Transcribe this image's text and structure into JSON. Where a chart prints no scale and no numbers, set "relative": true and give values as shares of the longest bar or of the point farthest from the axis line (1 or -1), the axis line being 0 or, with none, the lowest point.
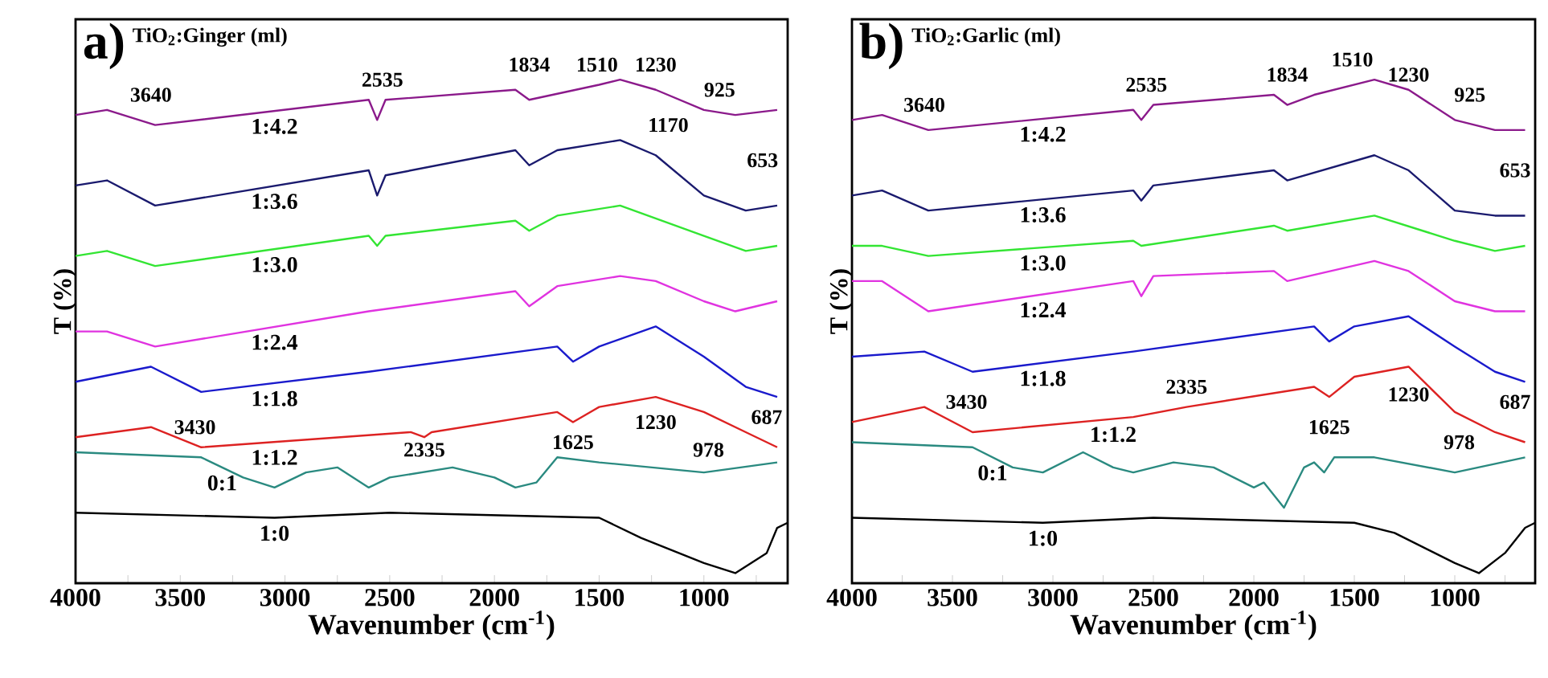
{
  "chart_data": [
    {
      "type": "line",
      "relative": true,
      "title": "a)",
      "subtitle": "TiO$_{2}$:Ginger (ml)",
      "xlabel": "Wavenumber (cm$^{-1}$)",
      "ylabel": "T (%)",
      "xlim": [
        4000,
        600
      ],
      "xticks": [
        4000,
        {
          "value": 3750,
          "label": null
        },
        3500,
        {
          "value": 3250,
          "label": null
        },
        3000,
        {
          "value": 2750,
          "label": null
        },
        2500,
        {
          "value": 2250,
          "label": null
        },
        2000,
        {
          "value": 1750,
          "label": null
        },
        1500,
        {
          "value": 1250,
          "label": null
        },
        1000,
        {
          "value": 750,
          "label": null
        }
      ],
      "series": [
        {
          "name": "1:4.2",
          "color": "#8b1a8b",
          "x": [
            4000,
            3850,
            3620,
            2600,
            2560,
            2520,
            1900,
            1834,
            1500,
            1400,
            1230,
            1000,
            850,
            650
          ],
          "values": [
            0.93,
            0.94,
            0.91,
            0.96,
            0.92,
            0.96,
            0.98,
            0.96,
            0.99,
            1.0,
            0.98,
            0.94,
            0.93,
            0.94
          ]
        },
        {
          "name": "1:3.6",
          "color": "#1a1a6e",
          "x": [
            4000,
            3850,
            3620,
            2600,
            2560,
            2520,
            1900,
            1834,
            1700,
            1400,
            1230,
            1000,
            800,
            650
          ],
          "values": [
            0.79,
            0.8,
            0.75,
            0.82,
            0.77,
            0.81,
            0.86,
            0.83,
            0.86,
            0.88,
            0.85,
            0.77,
            0.74,
            0.75
          ]
        },
        {
          "name": "1:3.0",
          "color": "#33e533",
          "x": [
            4000,
            3850,
            3620,
            2600,
            2560,
            2520,
            1900,
            1834,
            1700,
            1400,
            1000,
            800,
            650
          ],
          "values": [
            0.65,
            0.66,
            0.63,
            0.69,
            0.67,
            0.69,
            0.72,
            0.7,
            0.73,
            0.75,
            0.69,
            0.66,
            0.67
          ]
        },
        {
          "name": "1:2.4",
          "color": "#e033e0",
          "x": [
            4000,
            3850,
            3620,
            2600,
            1900,
            1834,
            1700,
            1400,
            1230,
            1000,
            850,
            650
          ],
          "values": [
            0.5,
            0.5,
            0.47,
            0.54,
            0.58,
            0.55,
            0.59,
            0.61,
            0.6,
            0.56,
            0.54,
            0.56
          ]
        },
        {
          "name": "1:1.8",
          "color": "#1a1acc",
          "x": [
            4000,
            3640,
            3400,
            2600,
            1700,
            1625,
            1500,
            1230,
            1000,
            800,
            650
          ],
          "values": [
            0.4,
            0.43,
            0.38,
            0.42,
            0.47,
            0.44,
            0.47,
            0.51,
            0.45,
            0.39,
            0.37
          ]
        },
        {
          "name": "1:1.2",
          "color": "#dd2222",
          "x": [
            4000,
            3640,
            3400,
            2400,
            2335,
            2300,
            1700,
            1625,
            1500,
            1230,
            1000,
            800,
            650
          ],
          "values": [
            0.29,
            0.31,
            0.27,
            0.3,
            0.29,
            0.3,
            0.34,
            0.32,
            0.35,
            0.37,
            0.34,
            0.3,
            0.27
          ]
        },
        {
          "name": "0:1",
          "color": "#2a8a80",
          "x": [
            4000,
            3400,
            3200,
            3050,
            2900,
            2750,
            2600,
            2500,
            2200,
            2000,
            1900,
            1800,
            1700,
            1500,
            1000,
            650
          ],
          "values": [
            0.26,
            0.25,
            0.21,
            0.19,
            0.22,
            0.23,
            0.19,
            0.21,
            0.23,
            0.21,
            0.19,
            0.2,
            0.25,
            0.24,
            0.22,
            0.24
          ]
        },
        {
          "name": "1:0",
          "color": "#000000",
          "x": [
            4000,
            3050,
            2500,
            1500,
            1300,
            1000,
            850,
            700,
            650,
            600
          ],
          "values": [
            0.14,
            0.13,
            0.14,
            0.13,
            0.09,
            0.04,
            0.02,
            0.06,
            0.11,
            0.12
          ]
        }
      ],
      "annotations": [
        "3640",
        "2535",
        "1834",
        "1510",
        "1230",
        "925",
        "1170",
        "653",
        "3430",
        "2335",
        "1625",
        "1230",
        "978",
        "687"
      ]
    },
    {
      "type": "line",
      "relative": true,
      "title": "b)",
      "subtitle": "TiO$_{2}$:Garlic (ml)",
      "xlabel": "Wavenumber (cm$^{-1}$)",
      "ylabel": "T (%)",
      "xlim": [
        4000,
        600
      ],
      "xticks": [
        4000,
        {
          "value": 3750,
          "label": null
        },
        3500,
        {
          "value": 3250,
          "label": null
        },
        3000,
        {
          "value": 2750,
          "label": null
        },
        2500,
        {
          "value": 2250,
          "label": null
        },
        2000,
        {
          "value": 1750,
          "label": null
        },
        1500,
        {
          "value": 1250,
          "label": null
        },
        1000,
        {
          "value": 750,
          "label": null
        }
      ],
      "series": [
        {
          "name": "1:4.2",
          "color": "#8b1a8b",
          "x": [
            4000,
            3850,
            3620,
            2600,
            2560,
            2500,
            1900,
            1834,
            1700,
            1400,
            1230,
            1000,
            800,
            650
          ],
          "values": [
            0.92,
            0.93,
            0.9,
            0.94,
            0.92,
            0.95,
            0.97,
            0.95,
            0.97,
            1.0,
            0.98,
            0.92,
            0.9,
            0.9
          ]
        },
        {
          "name": "1:3.6",
          "color": "#1a1a6e",
          "x": [
            4000,
            3850,
            3620,
            2600,
            2560,
            2500,
            1900,
            1834,
            1400,
            1230,
            1000,
            800,
            650
          ],
          "values": [
            0.77,
            0.78,
            0.74,
            0.78,
            0.76,
            0.79,
            0.82,
            0.8,
            0.85,
            0.82,
            0.74,
            0.73,
            0.73
          ]
        },
        {
          "name": "1:3.0",
          "color": "#33e533",
          "x": [
            4000,
            3850,
            3620,
            2600,
            2560,
            1900,
            1834,
            1400,
            1000,
            800,
            650
          ],
          "values": [
            0.67,
            0.67,
            0.65,
            0.68,
            0.67,
            0.71,
            0.7,
            0.73,
            0.68,
            0.66,
            0.67
          ]
        },
        {
          "name": "1:2.4",
          "color": "#e033e0",
          "x": [
            4000,
            3850,
            3620,
            2600,
            2560,
            2500,
            1900,
            1834,
            1400,
            1230,
            1000,
            800,
            650
          ],
          "values": [
            0.6,
            0.6,
            0.54,
            0.6,
            0.57,
            0.61,
            0.62,
            0.6,
            0.64,
            0.62,
            0.56,
            0.54,
            0.54
          ]
        },
        {
          "name": "1:1.8",
          "color": "#1a1acc",
          "x": [
            4000,
            3640,
            3400,
            2600,
            1700,
            1625,
            1500,
            1230,
            1000,
            800,
            650
          ],
          "values": [
            0.45,
            0.46,
            0.42,
            0.46,
            0.51,
            0.48,
            0.51,
            0.53,
            0.47,
            0.42,
            0.4
          ]
        },
        {
          "name": "1:1.2",
          "color": "#dd2222",
          "x": [
            4000,
            3640,
            3400,
            2600,
            2335,
            1700,
            1625,
            1500,
            1230,
            1000,
            800,
            650
          ],
          "values": [
            0.32,
            0.35,
            0.3,
            0.33,
            0.35,
            0.39,
            0.37,
            0.41,
            0.43,
            0.34,
            0.3,
            0.28
          ]
        },
        {
          "name": "0:1",
          "color": "#2a8a80",
          "x": [
            4000,
            3400,
            3200,
            3050,
            2850,
            2700,
            2600,
            2500,
            2400,
            2200,
            2100,
            2000,
            1950,
            1850,
            1750,
            1700,
            1650,
            1600,
            1400,
            1000,
            650
          ],
          "values": [
            0.28,
            0.27,
            0.23,
            0.22,
            0.26,
            0.23,
            0.22,
            0.23,
            0.24,
            0.23,
            0.21,
            0.19,
            0.2,
            0.15,
            0.23,
            0.24,
            0.22,
            0.25,
            0.25,
            0.22,
            0.25
          ]
        },
        {
          "name": "1:0",
          "color": "#000000",
          "x": [
            4000,
            3050,
            2500,
            1500,
            1300,
            1000,
            880,
            750,
            650,
            600
          ],
          "values": [
            0.13,
            0.12,
            0.13,
            0.12,
            0.1,
            0.04,
            0.02,
            0.06,
            0.11,
            0.12
          ]
        }
      ],
      "annotations": [
        "3640",
        "2535",
        "1834",
        "1510",
        "1230",
        "925",
        "653",
        "3430",
        "2335",
        "1625",
        "1230",
        "978",
        "687"
      ]
    }
  ]
}
